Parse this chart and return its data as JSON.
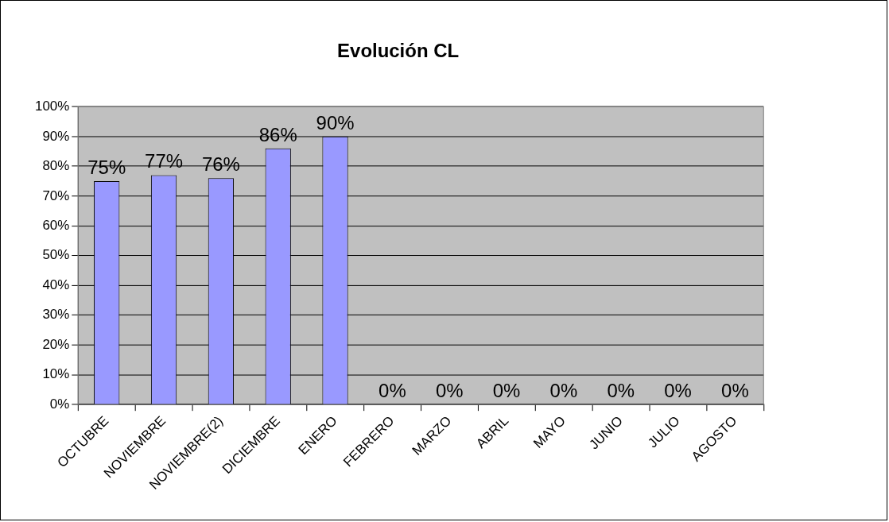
{
  "chart_data": {
    "type": "bar",
    "title": "Evolución CL",
    "categories": [
      "OCTUBRE",
      "NOVIEMBRE",
      "NOVIEMBRE(2)",
      "DICIEMBRE",
      "ENERO",
      "FEBRERO",
      "MARZO",
      "ABRIL",
      "MAYO",
      "JUNIO",
      "JULIO",
      "AGOSTO"
    ],
    "values": [
      75,
      77,
      76,
      86,
      90,
      0,
      0,
      0,
      0,
      0,
      0,
      0
    ],
    "value_labels": [
      "75%",
      "77%",
      "76%",
      "86%",
      "90%",
      "0%",
      "0%",
      "0%",
      "0%",
      "0%",
      "0%",
      "0%"
    ],
    "color": "#9999ff",
    "ylim": [
      0,
      100
    ],
    "yticks": [
      {
        "value": 0,
        "label": "0%"
      },
      {
        "value": 10,
        "label": "10%"
      },
      {
        "value": 20,
        "label": "20%"
      },
      {
        "value": 30,
        "label": "30%"
      },
      {
        "value": 40,
        "label": "40%"
      },
      {
        "value": 50,
        "label": "50%"
      },
      {
        "value": 60,
        "label": "60%"
      },
      {
        "value": 70,
        "label": "70%"
      },
      {
        "value": 80,
        "label": "80%"
      },
      {
        "value": 90,
        "label": "90%"
      },
      {
        "value": 100,
        "label": "100%"
      }
    ],
    "grid": "y",
    "legend": false
  }
}
